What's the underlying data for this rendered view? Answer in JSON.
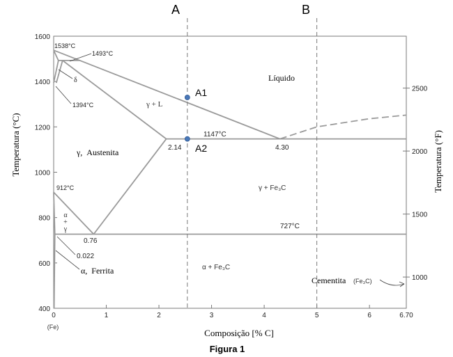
{
  "figure": {
    "caption": "Figura 1",
    "xlabel": "Composição [% C]",
    "ylabel_left": "Temperatura (°C)",
    "ylabel_right": "Temperatura (°F)",
    "x_origin_note": "(Fe)"
  },
  "colors": {
    "phase_line": "#9a9a9a",
    "axis": "#7a7a7a",
    "dashed_marker": "#7a7a7a",
    "point_fill": "#4a78b8"
  },
  "chart_data": {
    "type": "diagram",
    "title": "",
    "x_axis": {
      "min": 0,
      "max": 6.7,
      "ticks": [
        0,
        1,
        2,
        3,
        4,
        5,
        6,
        6.7
      ],
      "tick_labels": [
        "0",
        "1",
        "2",
        "3",
        "4",
        "5",
        "6",
        "6.70"
      ]
    },
    "y_axis_left": {
      "min": 400,
      "max": 1600,
      "ticks": [
        400,
        600,
        800,
        1000,
        1200,
        1400,
        1600
      ],
      "tick_labels": [
        "400",
        "600",
        "800",
        "1000",
        "1200",
        "1400",
        "1600"
      ]
    },
    "y_axis_right": {
      "unit": "°F",
      "ticks": [
        1000,
        1500,
        2000,
        2500
      ],
      "tick_labels": [
        "1000",
        "1500",
        "2000",
        "2500"
      ]
    },
    "phase_lines": [
      {
        "name": "liquidus-left",
        "points": [
          [
            0,
            1538
          ],
          [
            4.3,
            1147
          ]
        ]
      },
      {
        "name": "liquidus-right",
        "style": "dashed",
        "points": [
          [
            4.3,
            1147
          ],
          [
            5.0,
            1200
          ],
          [
            6.0,
            1236
          ],
          [
            6.7,
            1252
          ]
        ]
      },
      {
        "name": "solidus",
        "points": [
          [
            0.17,
            1493
          ],
          [
            2.14,
            1147
          ]
        ]
      },
      {
        "name": "eutectic-line",
        "points": [
          [
            2.14,
            1147
          ],
          [
            6.7,
            1147
          ]
        ]
      },
      {
        "name": "acm-line",
        "points": [
          [
            2.14,
            1147
          ],
          [
            0.76,
            727
          ]
        ]
      },
      {
        "name": "a3-line",
        "points": [
          [
            0,
            912
          ],
          [
            0.76,
            727
          ]
        ]
      },
      {
        "name": "eutectoid-line",
        "points": [
          [
            0.022,
            727
          ],
          [
            6.7,
            727
          ]
        ]
      },
      {
        "name": "alpha-solvus",
        "points": [
          [
            0.022,
            727
          ],
          [
            0.008,
            400
          ]
        ]
      },
      {
        "name": "alpha-gamma-boundary",
        "points": [
          [
            0,
            912
          ],
          [
            0.022,
            727
          ]
        ]
      },
      {
        "name": "delta-left",
        "points": [
          [
            0,
            1538
          ],
          [
            0.09,
            1493
          ]
        ]
      },
      {
        "name": "delta-right",
        "points": [
          [
            0.09,
            1493
          ],
          [
            0,
            1394
          ]
        ]
      },
      {
        "name": "peritectic-line",
        "points": [
          [
            0.09,
            1493
          ],
          [
            0.5,
            1493
          ]
        ]
      },
      {
        "name": "delta-gamma-upper",
        "points": [
          [
            0.17,
            1493
          ],
          [
            0.05,
            1394
          ]
        ]
      }
    ],
    "composition_markers": [
      {
        "label": "A",
        "x": 2.54
      },
      {
        "label": "B",
        "x": 5.0
      }
    ],
    "points": [
      {
        "label": "A1",
        "x": 2.54,
        "y": 1330
      },
      {
        "label": "A2",
        "x": 2.54,
        "y": 1147
      }
    ],
    "annotations": {
      "t1538": "1538°C",
      "t1493": "1493°C",
      "t1394": "1394°C",
      "t1147": "1147°C",
      "t912": "912°C",
      "t727": "727°C",
      "c214": "2.14",
      "c430": "4.30",
      "c076": "0.76",
      "c0022": "0.022",
      "delta": "δ",
      "liquido": "Líquido",
      "gamma_l": "γ + L",
      "austenita": "γ,  Austenita",
      "gamma_fe3c": "γ + Fe₃C",
      "alpha_gamma": [
        "α",
        "+",
        "γ"
      ],
      "ferrita": "α,  Ferrita",
      "alpha_fe3c": "α + Fe₃C",
      "cementita": "Cementita",
      "cementita_formula": "(Fe₃C)"
    }
  }
}
